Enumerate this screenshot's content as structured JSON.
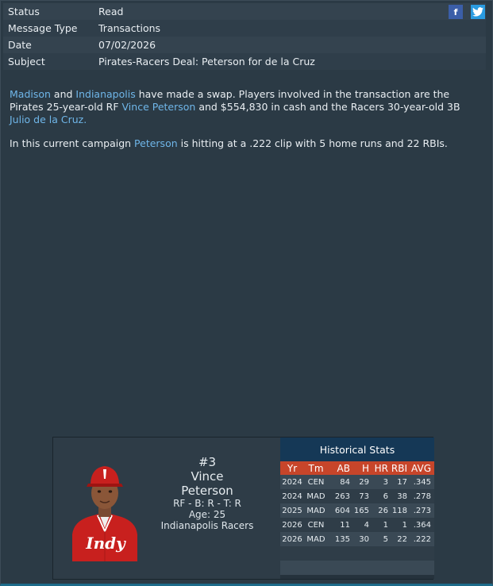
{
  "meta": [
    {
      "label": "Status",
      "value": "Read"
    },
    {
      "label": "Message Type",
      "value": "Transactions"
    },
    {
      "label": "Date",
      "value": "07/02/2026"
    },
    {
      "label": "Subject",
      "value": "Pirates-Racers Deal: Peterson for de la Cruz"
    }
  ],
  "social": {
    "facebook": "f",
    "twitter_icon": "twitter-bird-icon"
  },
  "article": {
    "p1": {
      "link1": "Madison",
      "t1": " and ",
      "link2": "Indianapolis",
      "t2": " have made a swap. Players involved in the transaction are the Pirates 25-year-old RF ",
      "link3": "Vince Peterson",
      "t3": " and $554,830 in cash and the Racers 30-year-old 3B ",
      "link4": "Julio de la Cruz",
      "t4": "."
    },
    "p2": {
      "t1": "In this current campaign ",
      "link1": "Peterson",
      "t2": " is hitting at a .222 clip with 5 home runs and 22 RBIs."
    }
  },
  "player": {
    "number": "#3",
    "first": "Vince",
    "last": "Peterson",
    "bats_throws": "RF - B: R - T: R",
    "age": "Age: 25",
    "team": "Indianapolis Racers",
    "jersey_text": "Indy"
  },
  "stats": {
    "title": "Historical Stats",
    "headers": [
      "Yr",
      "Tm",
      "AB",
      "H",
      "HR",
      "RBI",
      "AVG"
    ],
    "rows": [
      [
        "2024",
        "CEN",
        "84",
        "29",
        "3",
        "17",
        ".345"
      ],
      [
        "2024",
        "MAD",
        "263",
        "73",
        "6",
        "38",
        ".278"
      ],
      [
        "2025",
        "MAD",
        "604",
        "165",
        "26",
        "118",
        ".273"
      ],
      [
        "2026",
        "CEN",
        "11",
        "4",
        "1",
        "1",
        ".364"
      ],
      [
        "2026",
        "MAD",
        "135",
        "30",
        "5",
        "22",
        ".222"
      ]
    ]
  },
  "colors": {
    "background": "#2b3a45",
    "link": "#6fb6e9",
    "stats_header": "#c7452a",
    "stats_title": "#153856"
  }
}
